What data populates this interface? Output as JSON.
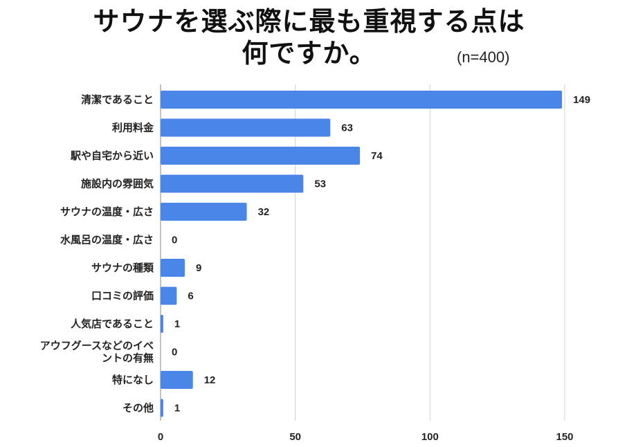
{
  "chart_data": {
    "type": "bar",
    "orientation": "horizontal",
    "title_lines": [
      "サウナを選ぶ際に最も重視する点は",
      "何ですか。"
    ],
    "sample_note": "(n=400)",
    "categories": [
      [
        "清潔であること"
      ],
      [
        "利用料金"
      ],
      [
        "駅や自宅から近い"
      ],
      [
        "施設内の雰囲気"
      ],
      [
        "サウナの温度・広さ"
      ],
      [
        "水風呂の温度・広さ"
      ],
      [
        "サウナの種類"
      ],
      [
        "口コミの評価"
      ],
      [
        "人気店であること"
      ],
      [
        "アウフグースなどのイベ",
        "ントの有無"
      ],
      [
        "特になし"
      ],
      [
        "その他"
      ]
    ],
    "values": [
      149,
      63,
      74,
      53,
      32,
      0,
      9,
      6,
      1,
      0,
      12,
      1
    ],
    "xlim": [
      0,
      150
    ],
    "xticks": [
      0,
      50,
      100,
      150
    ],
    "grid": true,
    "bar_color": "#4a86e8"
  }
}
